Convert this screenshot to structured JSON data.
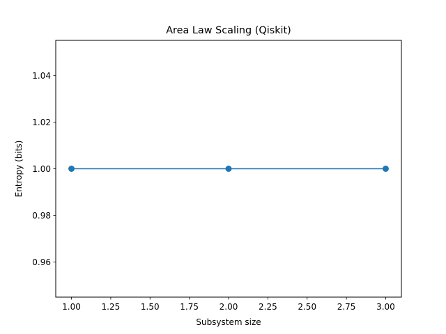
{
  "chart_data": {
    "type": "line",
    "title": "Area Law Scaling (Qiskit)",
    "xlabel": "Subsystem size",
    "ylabel": "Entropy (bits)",
    "x": [
      1,
      2,
      3
    ],
    "series": [
      {
        "values": [
          1.0,
          1.0,
          1.0
        ],
        "color": "#1f77b4",
        "marker": "circle"
      }
    ],
    "xlim": [
      0.9,
      3.1
    ],
    "ylim": [
      0.945,
      1.055
    ],
    "xticks": [
      1.0,
      1.25,
      1.5,
      1.75,
      2.0,
      2.25,
      2.5,
      2.75,
      3.0
    ],
    "xtick_labels": [
      "1.00",
      "1.25",
      "1.50",
      "1.75",
      "2.00",
      "2.25",
      "2.50",
      "2.75",
      "3.00"
    ],
    "yticks": [
      0.96,
      0.98,
      1.0,
      1.02,
      1.04
    ],
    "ytick_labels": [
      "0.96",
      "0.98",
      "1.00",
      "1.02",
      "1.04"
    ],
    "grid": false,
    "legend": "none"
  }
}
